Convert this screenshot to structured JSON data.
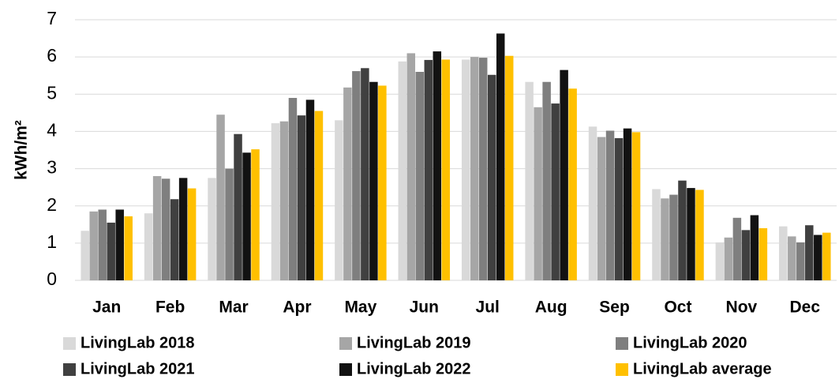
{
  "chart_data": {
    "type": "bar",
    "y_label": "kWh/m²",
    "categories": [
      "Jan",
      "Feb",
      "Mar",
      "Apr",
      "May",
      "Jun",
      "Jul",
      "Aug",
      "Sep",
      "Oct",
      "Nov",
      "Dec"
    ],
    "series": [
      {
        "name": "LivingLab 2018",
        "color": "#d9d9d9",
        "values": [
          1.33,
          1.8,
          2.75,
          4.22,
          4.3,
          5.88,
          5.93,
          5.33,
          4.13,
          2.45,
          1.02,
          1.45
        ]
      },
      {
        "name": "LivingLab 2019",
        "color": "#a6a6a6",
        "values": [
          1.85,
          2.8,
          4.45,
          4.27,
          5.18,
          6.1,
          6.0,
          4.65,
          3.85,
          2.2,
          1.15,
          1.18
        ]
      },
      {
        "name": "LivingLab 2020",
        "color": "#7f7f7f",
        "values": [
          1.9,
          2.73,
          3.0,
          4.9,
          5.62,
          5.6,
          5.98,
          5.33,
          4.02,
          2.3,
          1.68,
          1.02
        ]
      },
      {
        "name": "LivingLab 2021",
        "color": "#404040",
        "values": [
          1.55,
          2.18,
          3.93,
          4.43,
          5.7,
          5.92,
          5.52,
          4.75,
          3.82,
          2.68,
          1.35,
          1.48
        ]
      },
      {
        "name": "LivingLab 2022",
        "color": "#121212",
        "values": [
          1.9,
          2.75,
          3.43,
          4.85,
          5.33,
          6.15,
          6.63,
          5.65,
          4.08,
          2.48,
          1.75,
          1.22
        ]
      },
      {
        "name": "LivingLab average",
        "color": "#ffc000",
        "values": [
          1.72,
          2.47,
          3.52,
          4.55,
          5.23,
          5.93,
          6.03,
          5.15,
          3.98,
          2.43,
          1.4,
          1.28
        ]
      }
    ],
    "ylim": [
      0,
      7
    ],
    "yticks": [
      0,
      1,
      2,
      3,
      4,
      5,
      6,
      7
    ],
    "grid": true
  }
}
